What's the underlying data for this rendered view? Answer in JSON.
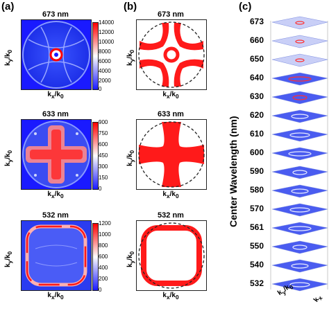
{
  "panel_labels": {
    "a": "(a)",
    "b": "(b)",
    "c": "(c)"
  },
  "axis_labels": {
    "ky": "k",
    "ky_sub": "y",
    "kx": "k",
    "kx_sub": "x",
    "k0": "/k",
    "k0_sub": "0"
  },
  "rows": [
    {
      "wavelength": "673 nm",
      "colorbar": [
        "14000",
        "12000",
        "10000",
        "8000",
        "6000",
        "4000",
        "2000",
        "0"
      ]
    },
    {
      "wavelength": "633 nm",
      "colorbar": [
        "900",
        "750",
        "600",
        "450",
        "300",
        "150",
        "0"
      ]
    },
    {
      "wavelength": "532 nm",
      "colorbar": [
        "1200",
        "1000",
        "800",
        "600",
        "400",
        "200",
        "0"
      ]
    }
  ],
  "panel_c": {
    "axis_title": "Center Wavelength (nm)",
    "wavelengths": [
      "673",
      "660",
      "650",
      "640",
      "630",
      "620",
      "610",
      "600",
      "590",
      "580",
      "570",
      "561",
      "550",
      "540",
      "532"
    ]
  },
  "colors": {
    "low": "#1a1aff",
    "mid": "#ffffff",
    "high": "#ff0000",
    "sim_fill": "#ff1a1a"
  }
}
